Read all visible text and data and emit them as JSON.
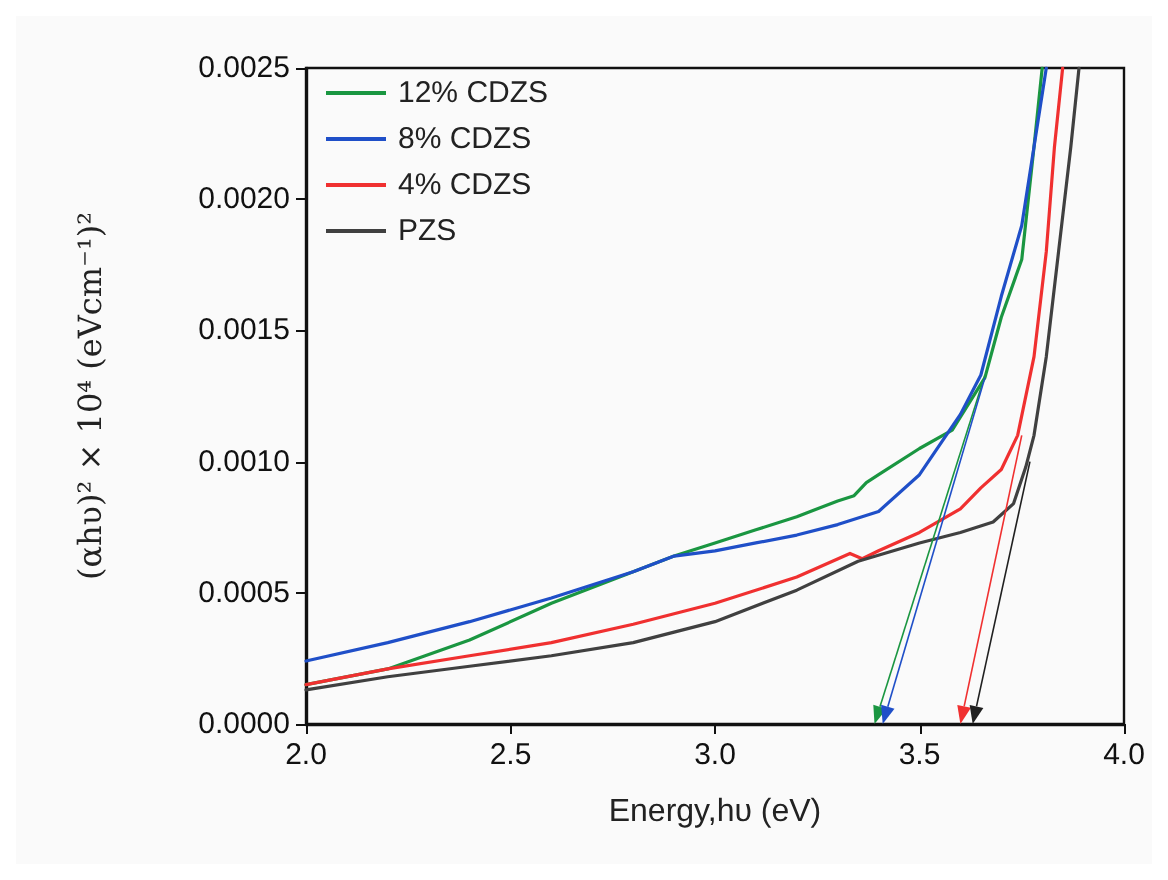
{
  "chart_data": {
    "type": "line",
    "xlabel": "Energy,hυ (eV)",
    "ylabel": "(αhυ)² × 10⁴ (eVcm⁻¹)²",
    "xlim": [
      2.0,
      4.0
    ],
    "xticks": [
      {
        "value": 2.0,
        "label": "2.0"
      },
      2.5,
      {
        "value": 3.0,
        "label": "3.0"
      },
      3.5,
      {
        "value": 4.0,
        "label": "4.0"
      }
    ],
    "ylim": [
      0,
      0.0025
    ],
    "yticks": [
      {
        "value": 0,
        "label": "0.0000"
      },
      {
        "value": 0.0005,
        "label": "0.0005"
      },
      {
        "value": 0.001,
        "label": "0.0010"
      },
      {
        "value": 0.0015,
        "label": "0.0015"
      },
      {
        "value": 0.002,
        "label": "0.0020"
      },
      {
        "value": 0.0025,
        "label": "0.0025"
      }
    ],
    "grid": false,
    "legend": "top left",
    "marker": "none",
    "line_style": "solid",
    "series": [
      {
        "name": "12% CDZS",
        "color": "#1a9641",
        "x": [
          2.0,
          2.2,
          2.4,
          2.6,
          2.8,
          2.9,
          3.0,
          3.1,
          3.2,
          3.3,
          3.34,
          3.37,
          3.4,
          3.5,
          3.58,
          3.66,
          3.7,
          3.75,
          3.78,
          3.8
        ],
        "values": [
          0.00015,
          0.00021,
          0.00032,
          0.00046,
          0.00058,
          0.00064,
          0.00069,
          0.00074,
          0.00079,
          0.00085,
          0.00087,
          0.00092,
          0.00095,
          0.00105,
          0.00112,
          0.00132,
          0.00155,
          0.00177,
          0.0022,
          0.0025
        ]
      },
      {
        "name": "8% CDZS",
        "color": "#1f4fc8",
        "x": [
          2.0,
          2.2,
          2.4,
          2.6,
          2.8,
          2.9,
          3.0,
          3.1,
          3.2,
          3.3,
          3.4,
          3.5,
          3.6,
          3.65,
          3.7,
          3.75,
          3.78,
          3.81
        ],
        "values": [
          0.00024,
          0.00031,
          0.00039,
          0.00048,
          0.00058,
          0.00064,
          0.00066,
          0.00069,
          0.00072,
          0.00076,
          0.00081,
          0.00095,
          0.00118,
          0.00133,
          0.00163,
          0.0019,
          0.0022,
          0.0025
        ]
      },
      {
        "name": "4% CDZS",
        "color": "#f03030",
        "x": [
          2.0,
          2.2,
          2.4,
          2.6,
          2.8,
          3.0,
          3.2,
          3.33,
          3.36,
          3.4,
          3.5,
          3.6,
          3.65,
          3.7,
          3.74,
          3.78,
          3.81,
          3.83,
          3.85
        ],
        "values": [
          0.00015,
          0.00021,
          0.00026,
          0.00031,
          0.00038,
          0.00046,
          0.00056,
          0.00065,
          0.00063,
          0.00066,
          0.00073,
          0.00082,
          0.0009,
          0.00097,
          0.0011,
          0.0014,
          0.0018,
          0.0022,
          0.0025
        ]
      },
      {
        "name": "PZS",
        "color": "#404040",
        "x": [
          2.0,
          2.2,
          2.4,
          2.6,
          2.8,
          3.0,
          3.2,
          3.35,
          3.5,
          3.6,
          3.68,
          3.73,
          3.76,
          3.78,
          3.81,
          3.84,
          3.87,
          3.89
        ],
        "values": [
          0.00013,
          0.00018,
          0.00022,
          0.00026,
          0.00031,
          0.00039,
          0.00051,
          0.00062,
          0.00069,
          0.00073,
          0.00077,
          0.00084,
          0.00098,
          0.0011,
          0.0014,
          0.0018,
          0.0022,
          0.0025
        ]
      }
    ]
  }
}
